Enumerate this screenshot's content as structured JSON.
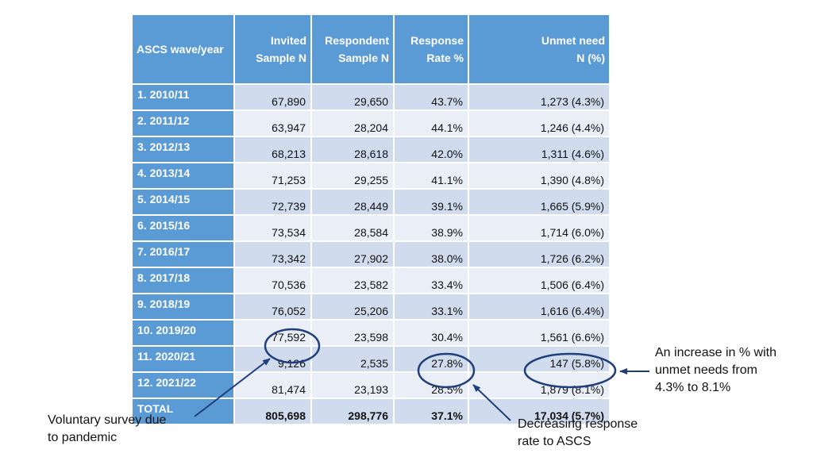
{
  "table": {
    "headers": {
      "wave": "ASCS wave/year",
      "invited_1": "Invited",
      "invited_2": "Sample N",
      "respondent_1": "Respondent",
      "respondent_2": "Sample N",
      "response_1": "Response",
      "response_2": "Rate %",
      "unmet_1": "Unmet need",
      "unmet_2": "N (%)"
    },
    "rows": [
      {
        "wave": "1. 2010/11",
        "invited": "67,890",
        "respondent": "29,650",
        "rate": "43.7%",
        "unmet": "1,273 (4.3%)"
      },
      {
        "wave": "2. 2011/12",
        "invited": "63,947",
        "respondent": "28,204",
        "rate": "44.1%",
        "unmet": "1,246 (4.4%)"
      },
      {
        "wave": "3. 2012/13",
        "invited": "68,213",
        "respondent": "28,618",
        "rate": "42.0%",
        "unmet": "1,311 (4.6%)"
      },
      {
        "wave": "4. 2013/14",
        "invited": "71,253",
        "respondent": "29,255",
        "rate": "41.1%",
        "unmet": "1,390 (4.8%)"
      },
      {
        "wave": "5. 2014/15",
        "invited": "72,739",
        "respondent": "28,449",
        "rate": "39.1%",
        "unmet": "1,665 (5.9%)"
      },
      {
        "wave": "6. 2015/16",
        "invited": "73,534",
        "respondent": "28,584",
        "rate": "38.9%",
        "unmet": "1,714 (6.0%)"
      },
      {
        "wave": "7. 2016/17",
        "invited": "73,342",
        "respondent": "27,902",
        "rate": "38.0%",
        "unmet": "1,726 (6.2%)"
      },
      {
        "wave": "8. 2017/18",
        "invited": "70,536",
        "respondent": "23,582",
        "rate": "33.4%",
        "unmet": "1,506 (6.4%)"
      },
      {
        "wave": "9. 2018/19",
        "invited": "76,052",
        "respondent": "25,206",
        "rate": "33.1%",
        "unmet": "1,616 (6.4%)"
      },
      {
        "wave": "10. 2019/20",
        "invited": "77,592",
        "respondent": "23,598",
        "rate": "30.4%",
        "unmet": "1,561 (6.6%)"
      },
      {
        "wave": "11. 2020/21",
        "invited": "9,126",
        "respondent": "2,535",
        "rate": "27.8%",
        "unmet": "147 (5.8%)"
      },
      {
        "wave": "12. 2021/22",
        "invited": "81,474",
        "respondent": "23,193",
        "rate": "28.5%",
        "unmet": "1,879 (8.1%)"
      }
    ],
    "total": {
      "wave": "TOTAL",
      "invited": "805,698",
      "respondent": "298,776",
      "rate": "37.1%",
      "unmet": "17,034 (5.7%)"
    }
  },
  "annotations": {
    "unmet_increase_1": "An increase in % with",
    "unmet_increase_2": "unmet needs from",
    "unmet_increase_3": "4.3% to 8.1%",
    "voluntary_1": "Voluntary survey due",
    "voluntary_2": "to pandemic",
    "response_decline_1": "Decreasing response",
    "response_decline_2": "rate to ASCS"
  },
  "colors": {
    "header": "#5b9bd5",
    "row_odd": "#d0dced",
    "row_even": "#e9eef7",
    "highlight": "#1f3f7a"
  }
}
